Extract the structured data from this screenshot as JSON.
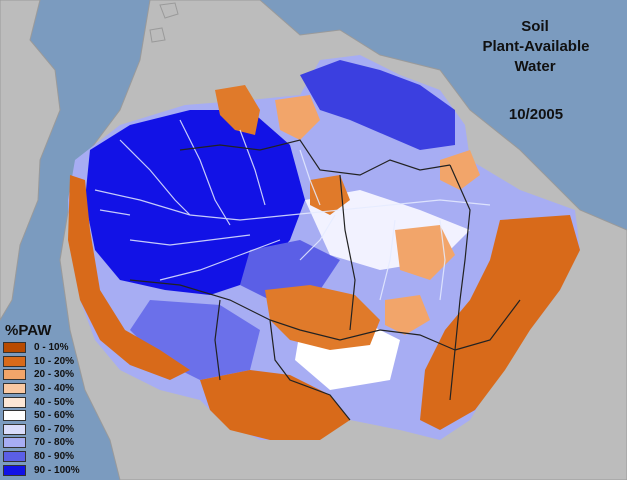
{
  "title": {
    "line1": "Soil",
    "line2": "Plant-Available",
    "line3": "Water",
    "date": "10/2005"
  },
  "legend": {
    "title": "%PAW",
    "items": [
      {
        "label": "0 - 10%",
        "color": "#b84a00"
      },
      {
        "label": "10 - 20%",
        "color": "#d86a1a"
      },
      {
        "label": "20 - 30%",
        "color": "#f2a56a"
      },
      {
        "label": "30 - 40%",
        "color": "#fac9a3"
      },
      {
        "label": "40 - 50%",
        "color": "#fde7d6"
      },
      {
        "label": "50 - 60%",
        "color": "#ffffff"
      },
      {
        "label": "60 - 70%",
        "color": "#d9dcfb"
      },
      {
        "label": "70 - 80%",
        "color": "#a7adf3"
      },
      {
        "label": "80 - 90%",
        "color": "#5b5fe6"
      },
      {
        "label": "90 - 100%",
        "color": "#1212e6"
      }
    ]
  },
  "colors": {
    "ocean": "#7b9bbf",
    "land": "#bcbcbc",
    "border": "#222222",
    "river": "#e6ecff"
  }
}
